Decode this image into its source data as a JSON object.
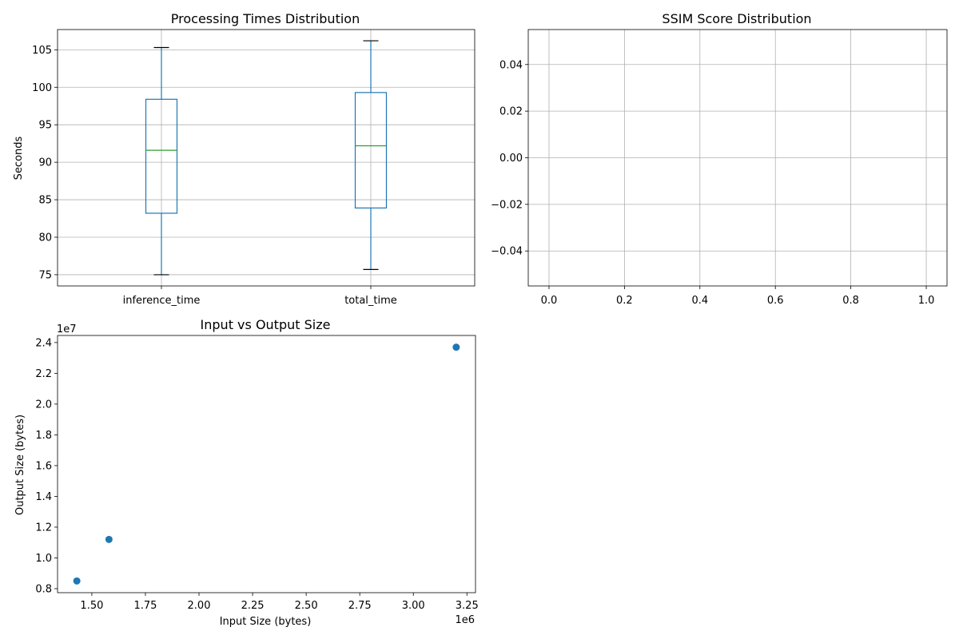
{
  "chart_data": [
    {
      "type": "box",
      "title": "Processing Times Distribution",
      "xlabel": "",
      "ylabel": "Seconds",
      "categories": [
        "inference_time",
        "total_time"
      ],
      "boxes": [
        {
          "category": "inference_time",
          "whisker_low": 75.0,
          "q1": 83.2,
          "median": 91.6,
          "q3": 98.4,
          "whisker_high": 105.3
        },
        {
          "category": "total_time",
          "whisker_low": 75.7,
          "q1": 83.9,
          "median": 92.2,
          "q3": 99.3,
          "whisker_high": 106.2
        }
      ],
      "ylim": [
        73.5,
        107.7
      ],
      "yticks": [
        75,
        80,
        85,
        90,
        95,
        100,
        105
      ],
      "grid": true,
      "colors": {
        "box": "#1f77b4",
        "median": "#2ca02c",
        "cap": "#000000"
      }
    },
    {
      "type": "line",
      "title": "SSIM Score Distribution",
      "xlabel": "",
      "ylabel": "",
      "series": [],
      "xlim": [
        -0.055,
        1.055
      ],
      "ylim": [
        -0.055,
        0.055
      ],
      "xticks": [
        "0.0",
        "0.2",
        "0.4",
        "0.6",
        "0.8",
        "1.0"
      ],
      "yticks": [
        "−0.04",
        "−0.02",
        "0.00",
        "0.02",
        "0.04"
      ],
      "xtick_values": [
        0,
        0.2,
        0.4,
        0.6,
        0.8,
        1.0
      ],
      "ytick_values": [
        -0.04,
        -0.02,
        0,
        0.02,
        0.04
      ],
      "grid": true
    },
    {
      "type": "scatter",
      "title": "Input vs Output Size",
      "xlabel": "Input Size (bytes)",
      "ylabel": "Output Size (bytes)",
      "x_offset_label": "1e6",
      "y_offset_label": "1e7",
      "points": [
        {
          "x": 1430000,
          "y": 8500000
        },
        {
          "x": 1580000,
          "y": 11200000
        },
        {
          "x": 3200000,
          "y": 23700000
        }
      ],
      "xlim": [
        1340000,
        3290000
      ],
      "ylim": [
        7740000,
        24460000
      ],
      "xticks": [
        "1.50",
        "1.75",
        "2.00",
        "2.25",
        "2.50",
        "2.75",
        "3.00",
        "3.25"
      ],
      "xtick_values": [
        1500000,
        1750000,
        2000000,
        2250000,
        2500000,
        2750000,
        3000000,
        3250000
      ],
      "yticks": [
        "0.8",
        "1.0",
        "1.2",
        "1.4",
        "1.6",
        "1.8",
        "2.0",
        "2.2",
        "2.4"
      ],
      "ytick_values": [
        8000000,
        10000000,
        12000000,
        14000000,
        16000000,
        18000000,
        20000000,
        22000000,
        24000000
      ],
      "grid": false,
      "colors": {
        "marker": "#1f77b4"
      }
    }
  ]
}
